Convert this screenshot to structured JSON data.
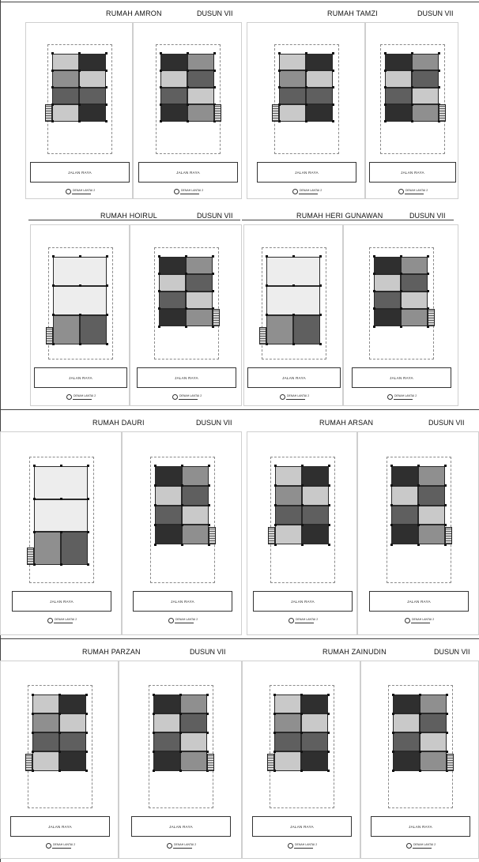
{
  "panels": [
    {
      "name": "RUMAH AMRON",
      "dusun": "DUSUN VII"
    },
    {
      "name": "RUMAH TAMZI",
      "dusun": "DUSUN VII"
    },
    {
      "name": "RUMAH HOIRUL",
      "dusun": "DUSUN VII"
    },
    {
      "name": "RUMAH HERI GUNAWAN",
      "dusun": "DUSUN VII"
    },
    {
      "name": "RUMAH DAURI",
      "dusun": "DUSUN VII"
    },
    {
      "name": "RUMAH ARSAN",
      "dusun": "DUSUN VII"
    },
    {
      "name": "RUMAH PARZAN",
      "dusun": "DUSUN VII"
    },
    {
      "name": "RUMAH ZAINUDIN",
      "dusun": "DUSUN VII"
    }
  ],
  "road_label": "JALAN RAYA",
  "view_caption": "DENAH LANTAI 2",
  "view_caption_alt": "DENAH LANTAI 2"
}
